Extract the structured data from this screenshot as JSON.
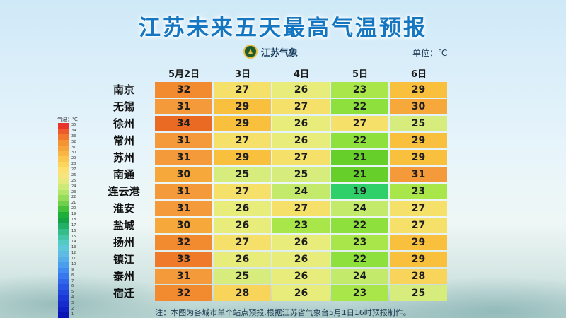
{
  "title": "江苏未来五天最高气温预报",
  "logo_text": "江苏气象",
  "unit": "单位：℃",
  "note": "注：本图为各城市单个站点预报,根据江苏省气象台5月1日16时预报制作。",
  "legend": {
    "title": "气温：℃",
    "labels": [
      "35",
      "34",
      "33",
      "32",
      "31",
      "30",
      "29",
      "28",
      "27",
      "26",
      "25",
      "24",
      "23",
      "22",
      "21",
      "20",
      "19",
      "18",
      "17",
      "16",
      "15",
      "14",
      "13",
      "12",
      "11",
      "10",
      "9",
      "8",
      "7",
      "6",
      "5",
      "4",
      "3",
      "2",
      "1"
    ],
    "colors": [
      "#e8342a",
      "#ee5a2c",
      "#f2782e",
      "#f59432",
      "#f7a53a",
      "#f9b642",
      "#fbc74e",
      "#fcd65c",
      "#fde06e",
      "#f5e57c",
      "#e4ea7c",
      "#cdea76",
      "#b3e56a",
      "#95dc5a",
      "#6fcf4a",
      "#46c13c",
      "#1eaf38",
      "#14a446",
      "#22b068",
      "#34bc8a",
      "#44c5a8",
      "#52cbc4",
      "#5ec8da",
      "#5cbce4",
      "#55aee8",
      "#4b9ded",
      "#408bef",
      "#3778ee",
      "#2f66ea",
      "#2855e4",
      "#2146de",
      "#1b38d6",
      "#162bcd",
      "#1020c2",
      "#0a15b5"
    ]
  },
  "chart_data": {
    "type": "table",
    "columns": [
      "5月2日",
      "3日",
      "4日",
      "5日",
      "6日"
    ],
    "rows": [
      {
        "city": "南京",
        "values": [
          32,
          27,
          26,
          23,
          29
        ]
      },
      {
        "city": "无锡",
        "values": [
          31,
          29,
          27,
          22,
          30
        ]
      },
      {
        "city": "徐州",
        "values": [
          34,
          29,
          26,
          27,
          25
        ]
      },
      {
        "city": "常州",
        "values": [
          31,
          27,
          26,
          22,
          29
        ]
      },
      {
        "city": "苏州",
        "values": [
          31,
          29,
          27,
          21,
          29
        ]
      },
      {
        "city": "南通",
        "values": [
          30,
          25,
          25,
          21,
          31
        ]
      },
      {
        "city": "连云港",
        "values": [
          31,
          27,
          24,
          19,
          23
        ]
      },
      {
        "city": "淮安",
        "values": [
          31,
          26,
          27,
          24,
          27
        ]
      },
      {
        "city": "盐城",
        "values": [
          30,
          26,
          23,
          22,
          27
        ]
      },
      {
        "city": "扬州",
        "values": [
          32,
          27,
          26,
          23,
          29
        ]
      },
      {
        "city": "镇江",
        "values": [
          33,
          26,
          26,
          22,
          29
        ]
      },
      {
        "city": "泰州",
        "values": [
          31,
          25,
          26,
          24,
          28
        ]
      },
      {
        "city": "宿迁",
        "values": [
          32,
          28,
          26,
          23,
          25
        ]
      }
    ]
  }
}
